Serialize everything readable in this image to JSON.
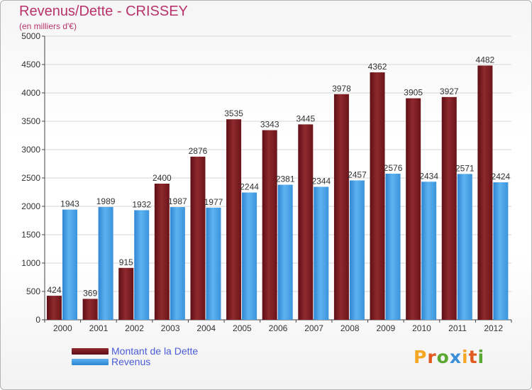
{
  "chart_data": {
    "type": "bar",
    "title": "Revenus/Dette - CRISSEY",
    "subtitle": "(en milliers d'€)",
    "categories": [
      "2000",
      "2001",
      "2002",
      "2003",
      "2004",
      "2005",
      "2006",
      "2007",
      "2008",
      "2009",
      "2010",
      "2011",
      "2012"
    ],
    "series": [
      {
        "name": "Montant de la Dette",
        "color": "#7a1a1f",
        "values": [
          424,
          369,
          915,
          2400,
          2876,
          3535,
          3343,
          3445,
          3978,
          4362,
          3905,
          3927,
          4482
        ]
      },
      {
        "name": "Revenus",
        "color": "#3d9be4",
        "values": [
          1943,
          1989,
          1932,
          1987,
          1977,
          2244,
          2381,
          2344,
          2457,
          2576,
          2434,
          2571,
          2424
        ]
      }
    ],
    "ylim": [
      0,
      5000
    ],
    "yticks": [
      0,
      500,
      1000,
      1500,
      2000,
      2500,
      3000,
      3500,
      4000,
      4500,
      5000
    ],
    "grid": true,
    "legend": "bottom-left"
  },
  "logo": {
    "text": "Proxiti",
    "colors": [
      "#f5a623",
      "#e05a1f",
      "#5aa832",
      "#3b8fd8",
      "#f5a623",
      "#e05a1f",
      "#5aa832"
    ]
  }
}
